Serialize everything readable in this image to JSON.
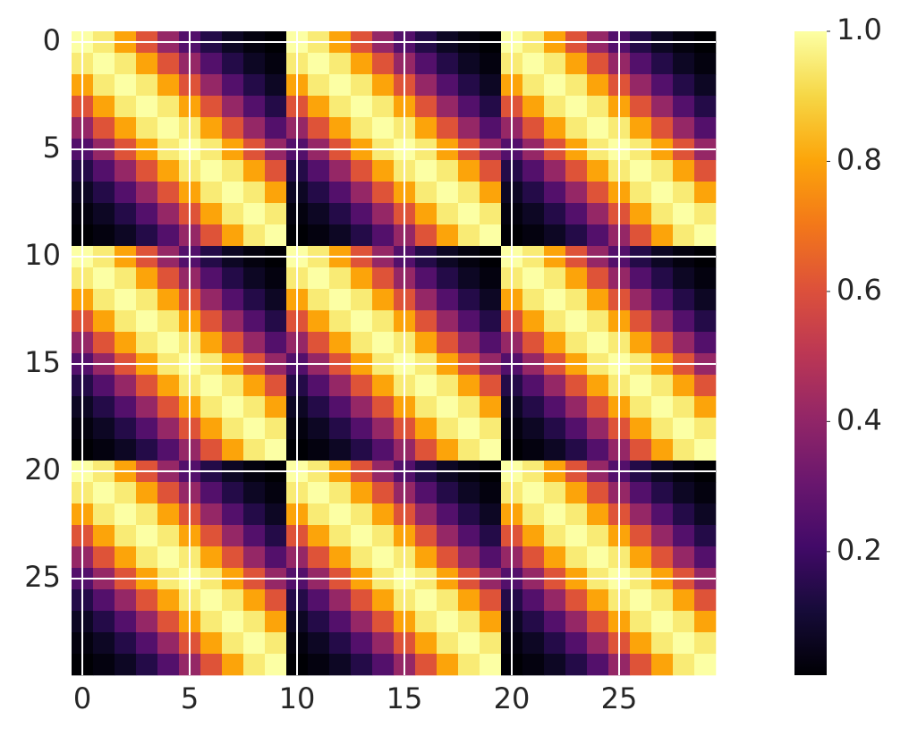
{
  "chart_data": {
    "type": "heatmap",
    "colormap": "inferno",
    "xlim": [
      -0.5,
      29.5
    ],
    "ylim": [
      -0.5,
      29.5
    ],
    "xticks": [
      0,
      5,
      10,
      15,
      20,
      25
    ],
    "yticks": [
      0,
      5,
      10,
      15,
      20,
      25
    ],
    "grid": true,
    "clim": [
      0.01,
      1
    ],
    "colorbar_ticks": [
      0.2,
      0.4,
      0.6,
      0.8,
      {
        "value": 1,
        "label": "1.0"
      }
    ],
    "z": [
      [
        1,
        0.95,
        0.8,
        0.61,
        0.41,
        0.25,
        0.14,
        0.07,
        0.03,
        0.01,
        1,
        0.95,
        0.8,
        0.61,
        0.41,
        0.25,
        0.14,
        0.07,
        0.03,
        0.01,
        1,
        0.95,
        0.8,
        0.61,
        0.41,
        0.25,
        0.14,
        0.07,
        0.03,
        0.01
      ],
      [
        0.95,
        1,
        0.95,
        0.8,
        0.61,
        0.41,
        0.25,
        0.14,
        0.07,
        0.03,
        0.95,
        1,
        0.95,
        0.8,
        0.61,
        0.41,
        0.25,
        0.14,
        0.07,
        0.03,
        0.95,
        1,
        0.95,
        0.8,
        0.61,
        0.41,
        0.25,
        0.14,
        0.07,
        0.03
      ],
      [
        0.8,
        0.95,
        1,
        0.95,
        0.8,
        0.61,
        0.41,
        0.25,
        0.14,
        0.07,
        0.8,
        0.95,
        1,
        0.95,
        0.8,
        0.61,
        0.41,
        0.25,
        0.14,
        0.07,
        0.8,
        0.95,
        1,
        0.95,
        0.8,
        0.61,
        0.41,
        0.25,
        0.14,
        0.07
      ],
      [
        0.61,
        0.8,
        0.95,
        1,
        0.95,
        0.8,
        0.61,
        0.41,
        0.25,
        0.14,
        0.61,
        0.8,
        0.95,
        1,
        0.95,
        0.8,
        0.61,
        0.41,
        0.25,
        0.14,
        0.61,
        0.8,
        0.95,
        1,
        0.95,
        0.8,
        0.61,
        0.41,
        0.25,
        0.14
      ],
      [
        0.41,
        0.61,
        0.8,
        0.95,
        1,
        0.95,
        0.8,
        0.61,
        0.41,
        0.25,
        0.41,
        0.61,
        0.8,
        0.95,
        1,
        0.95,
        0.8,
        0.61,
        0.41,
        0.25,
        0.41,
        0.61,
        0.8,
        0.95,
        1,
        0.95,
        0.8,
        0.61,
        0.41,
        0.25
      ],
      [
        0.25,
        0.41,
        0.61,
        0.8,
        0.95,
        1,
        0.95,
        0.8,
        0.61,
        0.41,
        0.25,
        0.41,
        0.61,
        0.8,
        0.95,
        1,
        0.95,
        0.8,
        0.61,
        0.41,
        0.25,
        0.41,
        0.61,
        0.8,
        0.95,
        1,
        0.95,
        0.8,
        0.61,
        0.41
      ],
      [
        0.14,
        0.25,
        0.41,
        0.61,
        0.8,
        0.95,
        1,
        0.95,
        0.8,
        0.61,
        0.14,
        0.25,
        0.41,
        0.61,
        0.8,
        0.95,
        1,
        0.95,
        0.8,
        0.61,
        0.14,
        0.25,
        0.41,
        0.61,
        0.8,
        0.95,
        1,
        0.95,
        0.8,
        0.61
      ],
      [
        0.07,
        0.14,
        0.25,
        0.41,
        0.61,
        0.8,
        0.95,
        1,
        0.95,
        0.8,
        0.07,
        0.14,
        0.25,
        0.41,
        0.61,
        0.8,
        0.95,
        1,
        0.95,
        0.8,
        0.07,
        0.14,
        0.25,
        0.41,
        0.61,
        0.8,
        0.95,
        1,
        0.95,
        0.8
      ],
      [
        0.03,
        0.07,
        0.14,
        0.25,
        0.41,
        0.61,
        0.8,
        0.95,
        1,
        0.95,
        0.03,
        0.07,
        0.14,
        0.25,
        0.41,
        0.61,
        0.8,
        0.95,
        1,
        0.95,
        0.03,
        0.07,
        0.14,
        0.25,
        0.41,
        0.61,
        0.8,
        0.95,
        1,
        0.95
      ],
      [
        0.01,
        0.03,
        0.07,
        0.14,
        0.25,
        0.41,
        0.61,
        0.8,
        0.95,
        1,
        0.01,
        0.03,
        0.07,
        0.14,
        0.25,
        0.41,
        0.61,
        0.8,
        0.95,
        1,
        0.01,
        0.03,
        0.07,
        0.14,
        0.25,
        0.41,
        0.61,
        0.8,
        0.95,
        1
      ],
      [
        1,
        0.95,
        0.8,
        0.61,
        0.41,
        0.25,
        0.14,
        0.07,
        0.03,
        0.01,
        1,
        0.95,
        0.8,
        0.61,
        0.41,
        0.25,
        0.14,
        0.07,
        0.03,
        0.01,
        1,
        0.95,
        0.8,
        0.61,
        0.41,
        0.25,
        0.14,
        0.07,
        0.03,
        0.01
      ],
      [
        0.95,
        1,
        0.95,
        0.8,
        0.61,
        0.41,
        0.25,
        0.14,
        0.07,
        0.03,
        0.95,
        1,
        0.95,
        0.8,
        0.61,
        0.41,
        0.25,
        0.14,
        0.07,
        0.03,
        0.95,
        1,
        0.95,
        0.8,
        0.61,
        0.41,
        0.25,
        0.14,
        0.07,
        0.03
      ],
      [
        0.8,
        0.95,
        1,
        0.95,
        0.8,
        0.61,
        0.41,
        0.25,
        0.14,
        0.07,
        0.8,
        0.95,
        1,
        0.95,
        0.8,
        0.61,
        0.41,
        0.25,
        0.14,
        0.07,
        0.8,
        0.95,
        1,
        0.95,
        0.8,
        0.61,
        0.41,
        0.25,
        0.14,
        0.07
      ],
      [
        0.61,
        0.8,
        0.95,
        1,
        0.95,
        0.8,
        0.61,
        0.41,
        0.25,
        0.14,
        0.61,
        0.8,
        0.95,
        1,
        0.95,
        0.8,
        0.61,
        0.41,
        0.25,
        0.14,
        0.61,
        0.8,
        0.95,
        1,
        0.95,
        0.8,
        0.61,
        0.41,
        0.25,
        0.14
      ],
      [
        0.41,
        0.61,
        0.8,
        0.95,
        1,
        0.95,
        0.8,
        0.61,
        0.41,
        0.25,
        0.41,
        0.61,
        0.8,
        0.95,
        1,
        0.95,
        0.8,
        0.61,
        0.41,
        0.25,
        0.41,
        0.61,
        0.8,
        0.95,
        1,
        0.95,
        0.8,
        0.61,
        0.41,
        0.25
      ],
      [
        0.25,
        0.41,
        0.61,
        0.8,
        0.95,
        1,
        0.95,
        0.8,
        0.61,
        0.41,
        0.25,
        0.41,
        0.61,
        0.8,
        0.95,
        1,
        0.95,
        0.8,
        0.61,
        0.41,
        0.25,
        0.41,
        0.61,
        0.8,
        0.95,
        1,
        0.95,
        0.8,
        0.61,
        0.41
      ],
      [
        0.14,
        0.25,
        0.41,
        0.61,
        0.8,
        0.95,
        1,
        0.95,
        0.8,
        0.61,
        0.14,
        0.25,
        0.41,
        0.61,
        0.8,
        0.95,
        1,
        0.95,
        0.8,
        0.61,
        0.14,
        0.25,
        0.41,
        0.61,
        0.8,
        0.95,
        1,
        0.95,
        0.8,
        0.61
      ],
      [
        0.07,
        0.14,
        0.25,
        0.41,
        0.61,
        0.8,
        0.95,
        1,
        0.95,
        0.8,
        0.07,
        0.14,
        0.25,
        0.41,
        0.61,
        0.8,
        0.95,
        1,
        0.95,
        0.8,
        0.07,
        0.14,
        0.25,
        0.41,
        0.61,
        0.8,
        0.95,
        1,
        0.95,
        0.8
      ],
      [
        0.03,
        0.07,
        0.14,
        0.25,
        0.41,
        0.61,
        0.8,
        0.95,
        1,
        0.95,
        0.03,
        0.07,
        0.14,
        0.25,
        0.41,
        0.61,
        0.8,
        0.95,
        1,
        0.95,
        0.03,
        0.07,
        0.14,
        0.25,
        0.41,
        0.61,
        0.8,
        0.95,
        1,
        0.95
      ],
      [
        0.01,
        0.03,
        0.07,
        0.14,
        0.25,
        0.41,
        0.61,
        0.8,
        0.95,
        1,
        0.01,
        0.03,
        0.07,
        0.14,
        0.25,
        0.41,
        0.61,
        0.8,
        0.95,
        1,
        0.01,
        0.03,
        0.07,
        0.14,
        0.25,
        0.41,
        0.61,
        0.8,
        0.95,
        1
      ],
      [
        1,
        0.95,
        0.8,
        0.61,
        0.41,
        0.25,
        0.14,
        0.07,
        0.03,
        0.01,
        1,
        0.95,
        0.8,
        0.61,
        0.41,
        0.25,
        0.14,
        0.07,
        0.03,
        0.01,
        1,
        0.95,
        0.8,
        0.61,
        0.41,
        0.25,
        0.14,
        0.07,
        0.03,
        0.01
      ],
      [
        0.95,
        1,
        0.95,
        0.8,
        0.61,
        0.41,
        0.25,
        0.14,
        0.07,
        0.03,
        0.95,
        1,
        0.95,
        0.8,
        0.61,
        0.41,
        0.25,
        0.14,
        0.07,
        0.03,
        0.95,
        1,
        0.95,
        0.8,
        0.61,
        0.41,
        0.25,
        0.14,
        0.07,
        0.03
      ],
      [
        0.8,
        0.95,
        1,
        0.95,
        0.8,
        0.61,
        0.41,
        0.25,
        0.14,
        0.07,
        0.8,
        0.95,
        1,
        0.95,
        0.8,
        0.61,
        0.41,
        0.25,
        0.14,
        0.07,
        0.8,
        0.95,
        1,
        0.95,
        0.8,
        0.61,
        0.41,
        0.25,
        0.14,
        0.07
      ],
      [
        0.61,
        0.8,
        0.95,
        1,
        0.95,
        0.8,
        0.61,
        0.41,
        0.25,
        0.14,
        0.61,
        0.8,
        0.95,
        1,
        0.95,
        0.8,
        0.61,
        0.41,
        0.25,
        0.14,
        0.61,
        0.8,
        0.95,
        1,
        0.95,
        0.8,
        0.61,
        0.41,
        0.25,
        0.14
      ],
      [
        0.41,
        0.61,
        0.8,
        0.95,
        1,
        0.95,
        0.8,
        0.61,
        0.41,
        0.25,
        0.41,
        0.61,
        0.8,
        0.95,
        1,
        0.95,
        0.8,
        0.61,
        0.41,
        0.25,
        0.41,
        0.61,
        0.8,
        0.95,
        1,
        0.95,
        0.8,
        0.61,
        0.41,
        0.25
      ],
      [
        0.25,
        0.41,
        0.61,
        0.8,
        0.95,
        1,
        0.95,
        0.8,
        0.61,
        0.41,
        0.25,
        0.41,
        0.61,
        0.8,
        0.95,
        1,
        0.95,
        0.8,
        0.61,
        0.41,
        0.25,
        0.41,
        0.61,
        0.8,
        0.95,
        1,
        0.95,
        0.8,
        0.61,
        0.41
      ],
      [
        0.14,
        0.25,
        0.41,
        0.61,
        0.8,
        0.95,
        1,
        0.95,
        0.8,
        0.61,
        0.14,
        0.25,
        0.41,
        0.61,
        0.8,
        0.95,
        1,
        0.95,
        0.8,
        0.61,
        0.14,
        0.25,
        0.41,
        0.61,
        0.8,
        0.95,
        1,
        0.95,
        0.8,
        0.61
      ],
      [
        0.07,
        0.14,
        0.25,
        0.41,
        0.61,
        0.8,
        0.95,
        1,
        0.95,
        0.8,
        0.07,
        0.14,
        0.25,
        0.41,
        0.61,
        0.8,
        0.95,
        1,
        0.95,
        0.8,
        0.07,
        0.14,
        0.25,
        0.41,
        0.61,
        0.8,
        0.95,
        1,
        0.95,
        0.8
      ],
      [
        0.03,
        0.07,
        0.14,
        0.25,
        0.41,
        0.61,
        0.8,
        0.95,
        1,
        0.95,
        0.03,
        0.07,
        0.14,
        0.25,
        0.41,
        0.61,
        0.8,
        0.95,
        1,
        0.95,
        0.03,
        0.07,
        0.14,
        0.25,
        0.41,
        0.61,
        0.8,
        0.95,
        1,
        0.95
      ],
      [
        0.01,
        0.03,
        0.07,
        0.14,
        0.25,
        0.41,
        0.61,
        0.8,
        0.95,
        1,
        0.01,
        0.03,
        0.07,
        0.14,
        0.25,
        0.41,
        0.61,
        0.8,
        0.95,
        1,
        0.01,
        0.03,
        0.07,
        0.14,
        0.25,
        0.41,
        0.61,
        0.8,
        0.95,
        1
      ]
    ]
  }
}
